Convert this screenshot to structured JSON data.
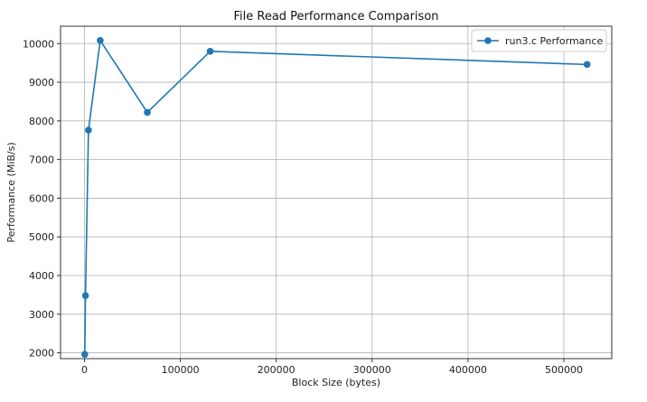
{
  "chart_data": {
    "type": "line",
    "title": "File Read Performance Comparison",
    "xlabel": "Block Size (bytes)",
    "ylabel": "Performance (MiB/s)",
    "xlim": [
      -25000,
      550000
    ],
    "ylim": [
      1850,
      10450
    ],
    "x_ticks": [
      0,
      100000,
      200000,
      300000,
      400000,
      500000
    ],
    "x_tick_labels": [
      "0",
      "100000",
      "200000",
      "300000",
      "400000",
      "500000"
    ],
    "y_ticks": [
      2000,
      3000,
      4000,
      5000,
      6000,
      7000,
      8000,
      9000,
      10000
    ],
    "y_tick_labels": [
      "2000",
      "3000",
      "4000",
      "5000",
      "6000",
      "7000",
      "8000",
      "9000",
      "10000"
    ],
    "grid": true,
    "legend_position": "top-right",
    "series": [
      {
        "name": "run3.c Performance",
        "color": "#1f77b4",
        "marker": "circle",
        "x": [
          256,
          1024,
          4096,
          16384,
          65536,
          131072,
          524288
        ],
        "y": [
          1960,
          3480,
          7760,
          10080,
          8220,
          9800,
          9460
        ]
      }
    ]
  }
}
